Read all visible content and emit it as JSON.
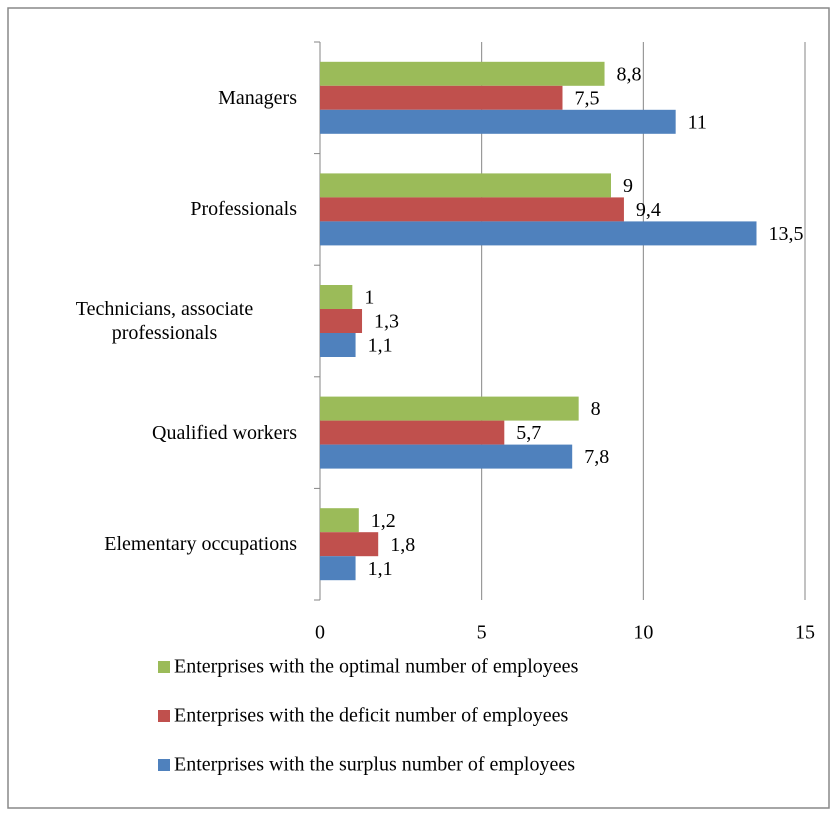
{
  "chart_data": {
    "type": "hbar",
    "categories": [
      "Managers",
      "Professionals",
      "Technicians, associate professionals",
      "Qualified workers",
      "Elementary occupations"
    ],
    "series": [
      {
        "name": "Enterprises with the optimal number of employees",
        "color": "#9bbb59",
        "values": [
          8.8,
          9,
          1,
          8,
          1.2
        ],
        "value_labels": [
          "8,8",
          "9",
          "1",
          "8",
          "1,2"
        ]
      },
      {
        "name": "Enterprises with the deficit number of employees",
        "color": "#c0504d",
        "values": [
          7.5,
          9.4,
          1.3,
          5.7,
          1.8
        ],
        "value_labels": [
          "7,5",
          "9,4",
          "1,3",
          "5,7",
          "1,8"
        ]
      },
      {
        "name": "Enterprises with the surplus number of employees",
        "color": "#4f81bd",
        "values": [
          11,
          13.5,
          1.1,
          7.8,
          1.1
        ],
        "value_labels": [
          "11",
          "13,5",
          "1,1",
          "7,8",
          "1,1"
        ]
      }
    ],
    "xlim": [
      0,
      15
    ],
    "xticks": [
      0,
      5,
      10,
      15
    ],
    "grid": true,
    "legend": "bottom"
  }
}
